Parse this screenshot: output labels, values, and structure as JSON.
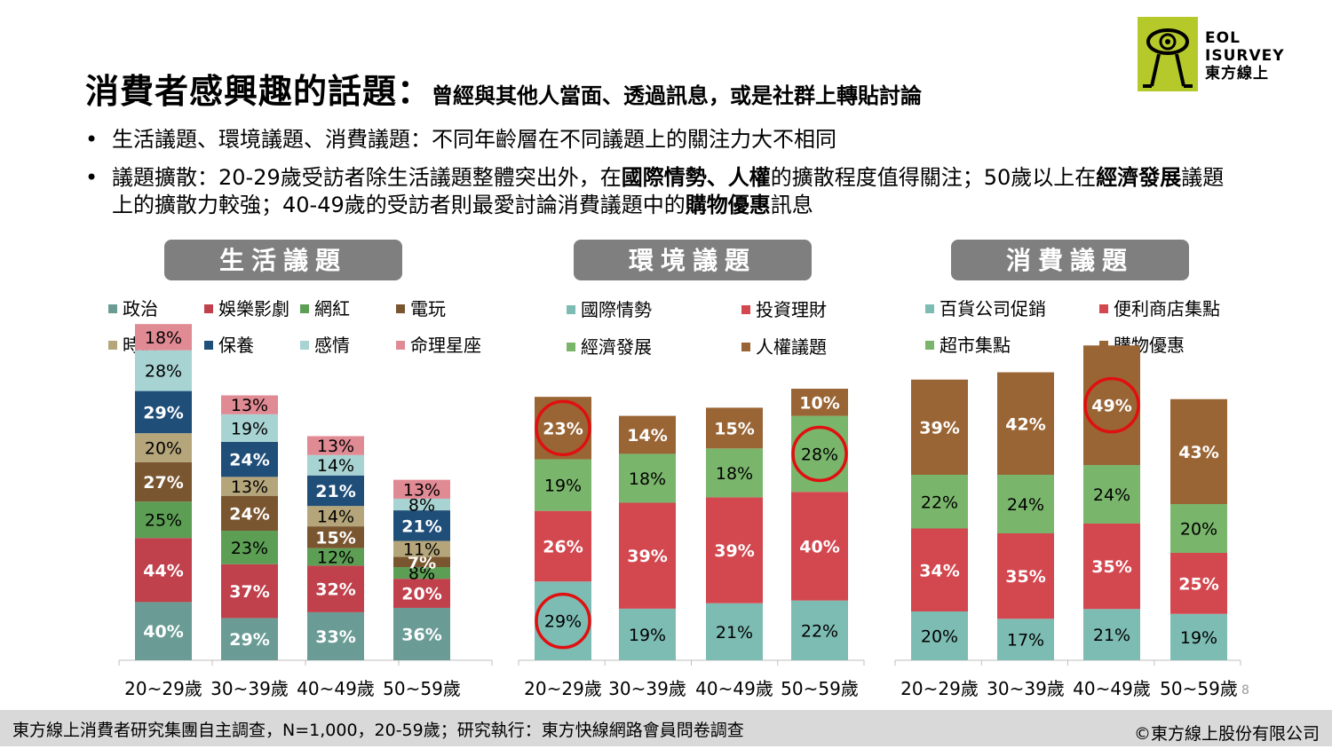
{
  "title": {
    "main": "消費者感興趣的話題：",
    "sub": "曾經與其他人當面、透過訊息，或是社群上轉貼討論"
  },
  "bullets": {
    "b1": "生活議題、環境議題、消費議題：不同年齡層在不同議題上的關注力大不相同",
    "b2": {
      "p1": "議題擴散：20-29歲受訪者除生活議題整體突出外，在",
      "s1": "國際情勢、人權",
      "p2": "的擴散程度值得關注；50歲以上在",
      "s2": "經濟發展",
      "p3": "議題上的擴散力較強；40-49歲的受訪者則最愛討論消費議題中的",
      "s3": "購物優惠",
      "p4": "訊息"
    }
  },
  "logo": {
    "line1": "EOL",
    "line2": "ISURVEY",
    "line3": "東方線上"
  },
  "footer": {
    "left": "東方線上消費者研究集團自主調查，N=1,000，20-59歲；研究執行：東方快線網路會員問卷調查",
    "right": "©東方線上股份有限公司"
  },
  "page_number": "8",
  "chart_data": [
    {
      "type": "bar",
      "stacked": true,
      "title": "生活議題",
      "categories": [
        "20~29歲",
        "30~39歲",
        "40~49歲",
        "50~59歲"
      ],
      "series": [
        {
          "name": "政治",
          "color": "#6a9c95",
          "values": [
            40,
            29,
            33,
            36
          ]
        },
        {
          "name": "娛樂影劇",
          "color": "#c0404c",
          "values": [
            44,
            37,
            32,
            20
          ]
        },
        {
          "name": "網紅",
          "color": "#5c9e54",
          "values": [
            25,
            23,
            12,
            8
          ]
        },
        {
          "name": "電玩",
          "color": "#7a5630",
          "values": [
            27,
            24,
            15,
            7
          ]
        },
        {
          "name": "時尚",
          "color": "#b5a57a",
          "values": [
            20,
            13,
            14,
            11
          ]
        },
        {
          "name": "保養",
          "color": "#1f4e79",
          "values": [
            29,
            24,
            21,
            21
          ]
        },
        {
          "name": "感情",
          "color": "#a8d3d3",
          "values": [
            28,
            19,
            14,
            8
          ]
        },
        {
          "name": "命理星座",
          "color": "#e08a94",
          "values": [
            18,
            13,
            13,
            13
          ]
        }
      ],
      "label_colors": [
        "#ffffff",
        "#ffffff",
        "#000000",
        "#ffffff",
        "#000000",
        "#ffffff",
        "#000000",
        "#000000"
      ],
      "legend_position": "top",
      "legend_columns": 4
    },
    {
      "type": "bar",
      "stacked": true,
      "title": "環境議題",
      "categories": [
        "20~29歲",
        "30~39歲",
        "40~49歲",
        "50~59歲"
      ],
      "series": [
        {
          "name": "國際情勢",
          "color": "#7dbcb3",
          "values": [
            29,
            19,
            21,
            22
          ]
        },
        {
          "name": "投資理財",
          "color": "#d3474f",
          "values": [
            26,
            39,
            39,
            40
          ]
        },
        {
          "name": "經濟發展",
          "color": "#7ab56c",
          "values": [
            19,
            18,
            18,
            28
          ]
        },
        {
          "name": "人權議題",
          "color": "#9a6535",
          "values": [
            23,
            14,
            15,
            10
          ]
        }
      ],
      "label_colors": [
        "#000000",
        "#ffffff",
        "#000000",
        "#ffffff"
      ],
      "highlights": [
        {
          "series": 0,
          "category": 0
        },
        {
          "series": 3,
          "category": 0
        },
        {
          "series": 2,
          "category": 3
        }
      ],
      "legend_position": "top",
      "legend_columns": 2
    },
    {
      "type": "bar",
      "stacked": true,
      "title": "消費議題",
      "categories": [
        "20~29歲",
        "30~39歲",
        "40~49歲",
        "50~59歲"
      ],
      "series": [
        {
          "name": "百貨公司促銷",
          "color": "#7dbcb3",
          "values": [
            20,
            17,
            21,
            19
          ]
        },
        {
          "name": "便利商店集點",
          "color": "#d3474f",
          "values": [
            34,
            35,
            35,
            25
          ]
        },
        {
          "name": "超市集點",
          "color": "#7ab56c",
          "values": [
            22,
            24,
            24,
            20
          ]
        },
        {
          "name": "購物優惠",
          "color": "#9a6535",
          "values": [
            39,
            42,
            49,
            43
          ]
        }
      ],
      "label_colors": [
        "#000000",
        "#ffffff",
        "#000000",
        "#ffffff"
      ],
      "highlights": [
        {
          "series": 3,
          "category": 2
        }
      ],
      "legend_position": "top",
      "legend_columns": 2
    }
  ]
}
